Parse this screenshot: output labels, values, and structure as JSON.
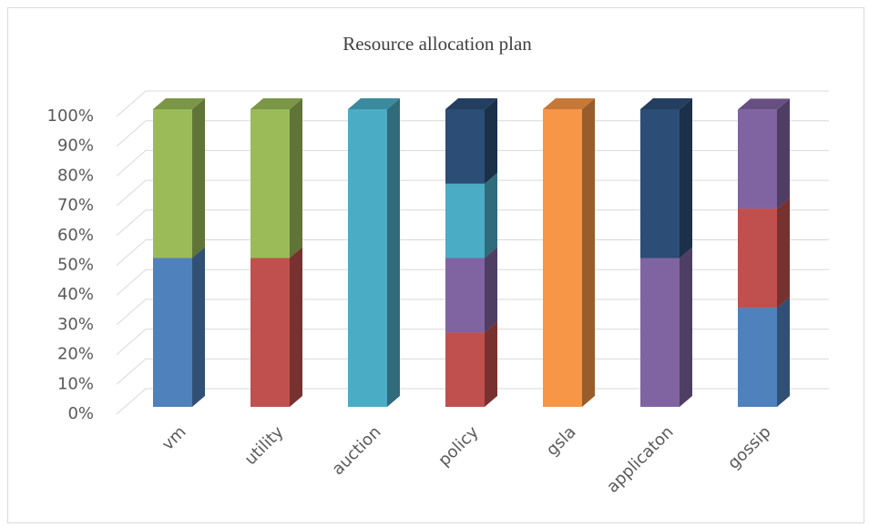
{
  "chart_data": {
    "type": "bar3d_stacked_percent",
    "title": "Resource allocation plan",
    "categories": [
      "vm",
      "utility",
      "auction",
      "policy",
      "gsla",
      "applicaton",
      "gossip"
    ],
    "series": [
      {
        "color": "#4f81bd",
        "values": [
          50,
          0,
          0,
          0,
          0,
          0,
          33.3
        ]
      },
      {
        "color": "#c0504d",
        "values": [
          0,
          50,
          0,
          25,
          0,
          0,
          33.3
        ]
      },
      {
        "color": "#8064a2",
        "values": [
          0,
          0,
          0,
          25,
          0,
          50,
          33.3
        ]
      },
      {
        "color": "#9bbb59",
        "values": [
          50,
          50,
          0,
          0,
          0,
          0,
          0
        ]
      },
      {
        "color": "#4bacc6",
        "values": [
          0,
          0,
          100,
          25,
          0,
          0,
          0
        ]
      },
      {
        "color": "#2c4d75",
        "values": [
          0,
          0,
          0,
          25,
          0,
          50,
          0
        ]
      },
      {
        "color": "#f79646",
        "values": [
          0,
          0,
          0,
          0,
          100,
          0,
          0
        ]
      }
    ],
    "ylim": [
      0,
      100
    ],
    "yticks": [
      {
        "value": 0,
        "label": "0%"
      },
      {
        "value": 10,
        "label": "10%"
      },
      {
        "value": 20,
        "label": "20%"
      },
      {
        "value": 30,
        "label": "30%"
      },
      {
        "value": 40,
        "label": "40%"
      },
      {
        "value": 50,
        "label": "50%"
      },
      {
        "value": 60,
        "label": "60%"
      },
      {
        "value": 70,
        "label": "70%"
      },
      {
        "value": 80,
        "label": "80%"
      },
      {
        "value": 90,
        "label": "90%"
      },
      {
        "value": 100,
        "label": "100%"
      }
    ],
    "grid": true
  }
}
